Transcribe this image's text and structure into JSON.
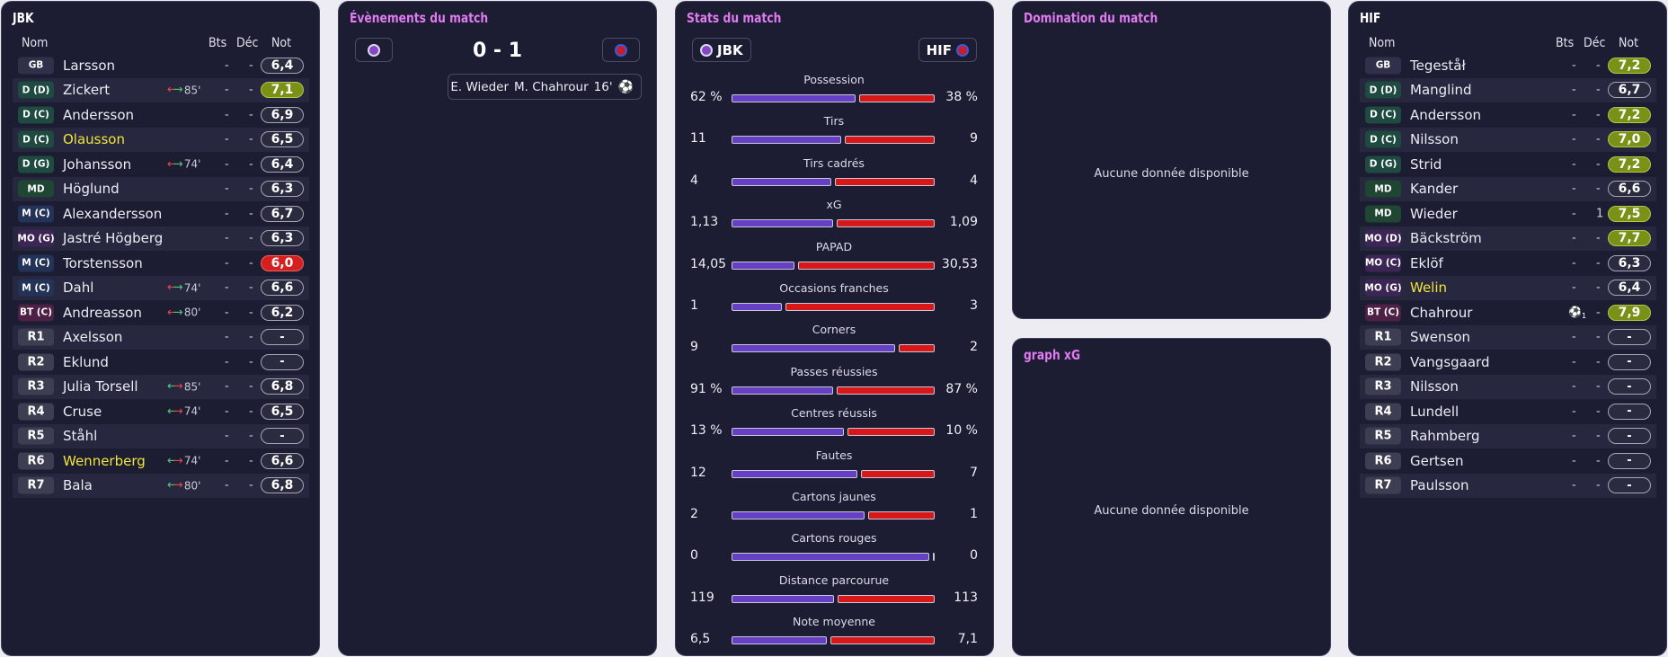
{
  "home_team": {
    "title": "JBK",
    "columns": {
      "name": "Nom",
      "goals": "Bts",
      "assists": "Déc",
      "rating": "Not"
    },
    "players": [
      {
        "pos": "GB",
        "name": "Larsson",
        "sub": "",
        "sub_min": "",
        "goals": "-",
        "assists": "-",
        "rating": "6,4"
      },
      {
        "pos": "D (D)",
        "name": "Zickert",
        "sub": "out",
        "sub_min": "85'",
        "goals": "-",
        "assists": "-",
        "rating": "7,1"
      },
      {
        "pos": "D (C)",
        "name": "Andersson",
        "sub": "",
        "sub_min": "",
        "goals": "-",
        "assists": "-",
        "rating": "6,9"
      },
      {
        "pos": "D (C)",
        "name": "Olausson",
        "sub": "",
        "sub_min": "",
        "goals": "-",
        "assists": "-",
        "rating": "6,5"
      },
      {
        "pos": "D (G)",
        "name": "Johansson",
        "sub": "out",
        "sub_min": "74'",
        "goals": "-",
        "assists": "-",
        "rating": "6,4"
      },
      {
        "pos": "MD",
        "name": "Höglund",
        "sub": "",
        "sub_min": "",
        "goals": "-",
        "assists": "-",
        "rating": "6,3"
      },
      {
        "pos": "M (C)",
        "name": "Alexandersson",
        "sub": "",
        "sub_min": "",
        "goals": "-",
        "assists": "-",
        "rating": "6,7"
      },
      {
        "pos": "MO (G)",
        "name": "Jastré Högberg",
        "sub": "",
        "sub_min": "",
        "goals": "-",
        "assists": "-",
        "rating": "6,3"
      },
      {
        "pos": "M (C)",
        "name": "Torstensson",
        "sub": "",
        "sub_min": "",
        "goals": "-",
        "assists": "-",
        "rating": "6,0"
      },
      {
        "pos": "M (C)",
        "name": "Dahl",
        "sub": "out",
        "sub_min": "74'",
        "goals": "-",
        "assists": "-",
        "rating": "6,6"
      },
      {
        "pos": "BT (C)",
        "name": "Andreasson",
        "sub": "out",
        "sub_min": "80'",
        "goals": "-",
        "assists": "-",
        "rating": "6,2"
      },
      {
        "pos": "R1",
        "name": "Axelsson",
        "sub": "",
        "sub_min": "",
        "goals": "-",
        "assists": "-",
        "rating": "-"
      },
      {
        "pos": "R2",
        "name": "Eklund",
        "sub": "",
        "sub_min": "",
        "goals": "-",
        "assists": "-",
        "rating": "-"
      },
      {
        "pos": "R3",
        "name": "Julia Torsell",
        "sub": "in",
        "sub_min": "85'",
        "goals": "-",
        "assists": "-",
        "rating": "6,8"
      },
      {
        "pos": "R4",
        "name": "Cruse",
        "sub": "in",
        "sub_min": "74'",
        "goals": "-",
        "assists": "-",
        "rating": "6,5"
      },
      {
        "pos": "R5",
        "name": "Ståhl",
        "sub": "",
        "sub_min": "",
        "goals": "-",
        "assists": "-",
        "rating": "-"
      },
      {
        "pos": "R6",
        "name": "Wennerberg",
        "sub": "in",
        "sub_min": "74'",
        "goals": "-",
        "assists": "-",
        "rating": "6,6"
      },
      {
        "pos": "R7",
        "name": "Bala",
        "sub": "in",
        "sub_min": "80'",
        "goals": "-",
        "assists": "-",
        "rating": "6,8"
      }
    ]
  },
  "events": {
    "title": "Évènements du match",
    "score": "0 - 1",
    "goal": {
      "assist": "E. Wieder",
      "scorer": "M. Chahrour",
      "minute": "16'"
    }
  },
  "stats": {
    "title": "Stats du match",
    "home_label": "JBK",
    "away_label": "HIF",
    "rows": [
      {
        "label": "Possession",
        "home": "62 %",
        "away": "38 %",
        "home_val": 62,
        "away_val": 38
      },
      {
        "label": "Tirs",
        "home": "11",
        "away": "9",
        "home_val": 11,
        "away_val": 9
      },
      {
        "label": "Tirs cadrés",
        "home": "4",
        "away": "4",
        "home_val": 4,
        "away_val": 4
      },
      {
        "label": "xG",
        "home": "1,13",
        "away": "1,09",
        "home_val": 1.13,
        "away_val": 1.09
      },
      {
        "label": "PAPAD",
        "home": "14,05",
        "away": "30,53",
        "home_val": 14.05,
        "away_val": 30.53
      },
      {
        "label": "Occasions franches",
        "home": "1",
        "away": "3",
        "home_val": 1,
        "away_val": 3
      },
      {
        "label": "Corners",
        "home": "9",
        "away": "2",
        "home_val": 9,
        "away_val": 2
      },
      {
        "label": "Passes réussies",
        "home": "91 %",
        "away": "87 %",
        "home_val": 91,
        "away_val": 87
      },
      {
        "label": "Centres réussis",
        "home": "13 %",
        "away": "10 %",
        "home_val": 13,
        "away_val": 10
      },
      {
        "label": "Fautes",
        "home": "12",
        "away": "7",
        "home_val": 12,
        "away_val": 7
      },
      {
        "label": "Cartons jaunes",
        "home": "2",
        "away": "1",
        "home_val": 2,
        "away_val": 1
      },
      {
        "label": "Cartons rouges",
        "home": "0",
        "away": "0",
        "home_val": 0,
        "away_val": 0
      },
      {
        "label": "Distance parcourue",
        "home": "119",
        "away": "113",
        "home_val": 119,
        "away_val": 113
      },
      {
        "label": "Note moyenne",
        "home": "6,5",
        "away": "7,1",
        "home_val": 6.5,
        "away_val": 7.1
      }
    ]
  },
  "domination": {
    "title": "Domination du match",
    "empty": "Aucune donnée disponible"
  },
  "xg_graph": {
    "title": "graph xG",
    "empty": "Aucune donnée disponible"
  },
  "away_team": {
    "title": "HIF",
    "columns": {
      "name": "Nom",
      "goals": "Bts",
      "assists": "Déc",
      "rating": "Not"
    },
    "players": [
      {
        "pos": "GB",
        "name": "Tegeståł",
        "goals": "-",
        "assists": "-",
        "rating": "7,2",
        "goal_icon": false
      },
      {
        "pos": "D (D)",
        "name": "Manglind",
        "goals": "-",
        "assists": "-",
        "rating": "6,7",
        "goal_icon": false
      },
      {
        "pos": "D (C)",
        "name": "Andersson",
        "goals": "-",
        "assists": "-",
        "rating": "7,2",
        "goal_icon": false
      },
      {
        "pos": "D (C)",
        "name": "Nilsson",
        "goals": "-",
        "assists": "-",
        "rating": "7,0",
        "goal_icon": false
      },
      {
        "pos": "D (G)",
        "name": "Strid",
        "goals": "-",
        "assists": "-",
        "rating": "7,2",
        "goal_icon": false
      },
      {
        "pos": "MD",
        "name": "Kander",
        "goals": "-",
        "assists": "-",
        "rating": "6,6",
        "goal_icon": false
      },
      {
        "pos": "MD",
        "name": "Wieder",
        "goals": "-",
        "assists": "1",
        "rating": "7,5",
        "goal_icon": false
      },
      {
        "pos": "MO (D)",
        "name": "Bäckström",
        "goals": "-",
        "assists": "-",
        "rating": "7,7",
        "goal_icon": false
      },
      {
        "pos": "MO (C)",
        "name": "Eklöf",
        "goals": "-",
        "assists": "-",
        "rating": "6,3",
        "goal_icon": false
      },
      {
        "pos": "MO (G)",
        "name": "Welin",
        "goals": "-",
        "assists": "-",
        "rating": "6,4",
        "goal_icon": false
      },
      {
        "pos": "BT (C)",
        "name": "Chahrour",
        "goals": "1",
        "assists": "-",
        "rating": "7,9",
        "goal_icon": true
      },
      {
        "pos": "R1",
        "name": "Swenson",
        "goals": "-",
        "assists": "-",
        "rating": "-",
        "goal_icon": false
      },
      {
        "pos": "R2",
        "name": "Vangsgaard",
        "goals": "-",
        "assists": "-",
        "rating": "-",
        "goal_icon": false
      },
      {
        "pos": "R3",
        "name": "Nilsson",
        "goals": "-",
        "assists": "-",
        "rating": "-",
        "goal_icon": false
      },
      {
        "pos": "R4",
        "name": "Lundell",
        "goals": "-",
        "assists": "-",
        "rating": "-",
        "goal_icon": false
      },
      {
        "pos": "R5",
        "name": "Rahmberg",
        "goals": "-",
        "assists": "-",
        "rating": "-",
        "goal_icon": false
      },
      {
        "pos": "R6",
        "name": "Gertsen",
        "goals": "-",
        "assists": "-",
        "rating": "-",
        "goal_icon": false
      },
      {
        "pos": "R7",
        "name": "Paulsson",
        "goals": "-",
        "assists": "-",
        "rating": "-",
        "goal_icon": false
      }
    ]
  }
}
